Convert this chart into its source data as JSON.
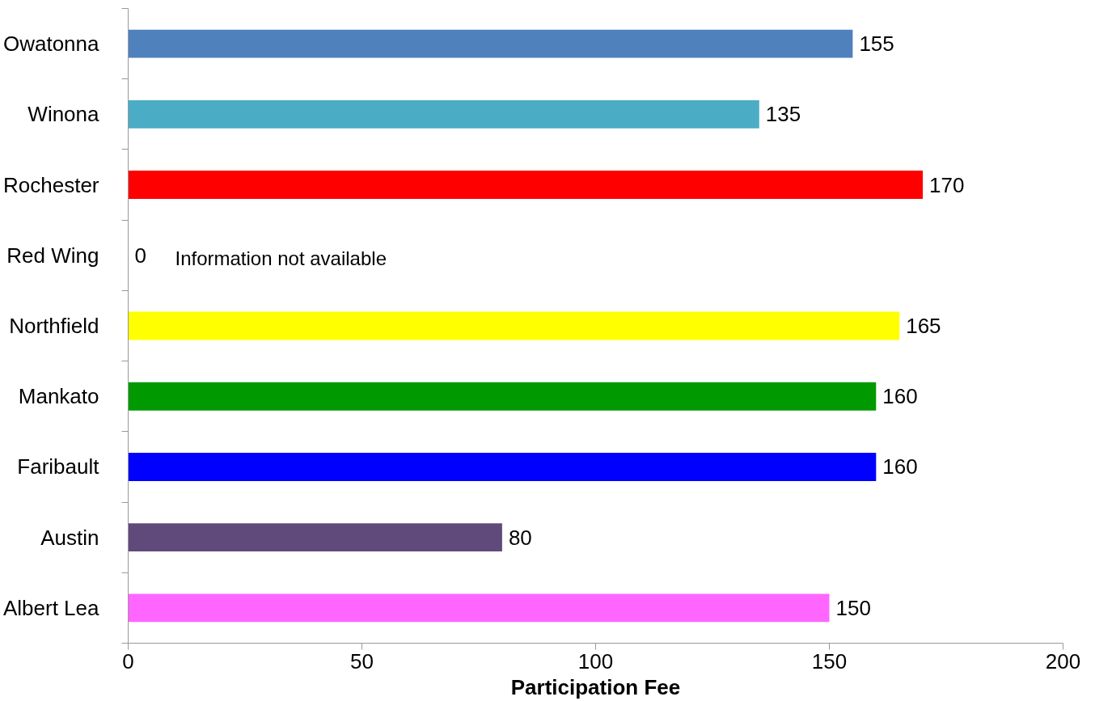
{
  "chart_data": {
    "type": "bar",
    "orientation": "horizontal",
    "xlabel": "Participation Fee",
    "categories": [
      "Owatonna",
      "Winona",
      "Rochester",
      "Red Wing",
      "Northfield",
      "Mankato",
      "Faribault",
      "Austin",
      "Albert Lea"
    ],
    "values": [
      155,
      135,
      170,
      0,
      165,
      160,
      160,
      80,
      150
    ],
    "colors": [
      "#4f81bd",
      "#4bacc6",
      "#ff0000",
      "#ffffff",
      "#ffff00",
      "#009900",
      "#0000ff",
      "#604a7b",
      "#ff66ff"
    ],
    "xlim": [
      0,
      200
    ],
    "xticks": [
      0,
      50,
      100,
      150,
      200
    ],
    "grid": false,
    "data_labels": true,
    "annotations": [
      "Information not available"
    ]
  }
}
